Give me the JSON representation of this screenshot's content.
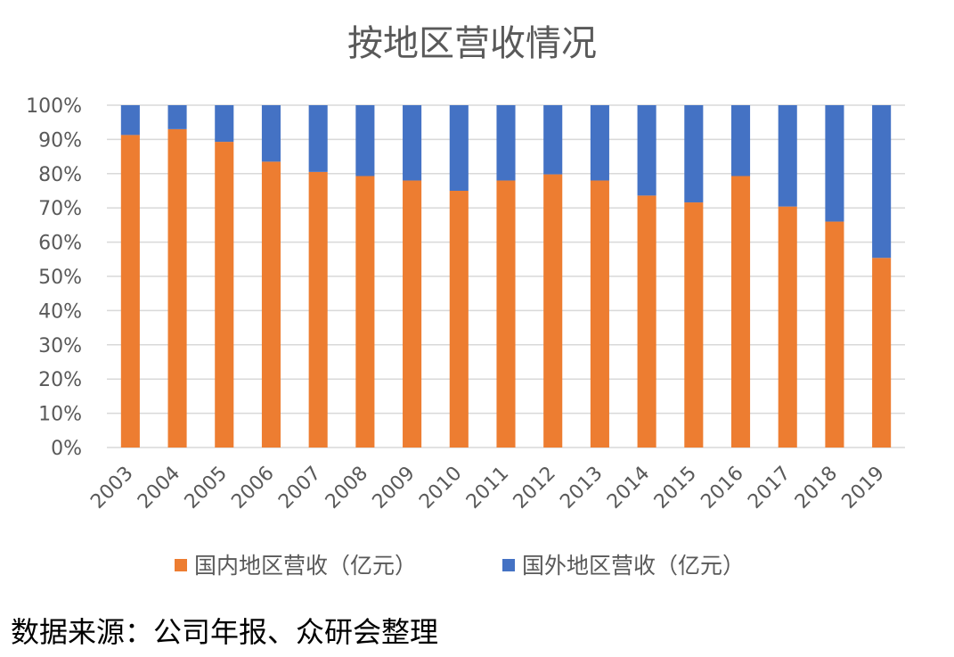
{
  "chart_data": {
    "type": "bar",
    "stacked": "percent",
    "title": "按地区营收情况",
    "xlabel": "",
    "ylabel": "",
    "ylim": [
      0,
      100
    ],
    "y_tick_labels": [
      "0%",
      "10%",
      "20%",
      "30%",
      "40%",
      "50%",
      "60%",
      "70%",
      "80%",
      "90%",
      "100%"
    ],
    "grid": true,
    "legend_position": "bottom",
    "categories": [
      "2003",
      "2004",
      "2005",
      "2006",
      "2007",
      "2008",
      "2009",
      "2010",
      "2011",
      "2012",
      "2013",
      "2014",
      "2015",
      "2016",
      "2017",
      "2018",
      "2019"
    ],
    "series": [
      {
        "name": "国内地区营收（亿元）",
        "color": "#ED7D31",
        "values": [
          91.3,
          93,
          89.3,
          83.5,
          80.5,
          79.3,
          78,
          75,
          78,
          79.8,
          78,
          73.6,
          71.6,
          79.3,
          70.4,
          66,
          55.4
        ]
      },
      {
        "name": "国外地区营收（亿元）",
        "color": "#4472C4",
        "values": [
          8.7,
          7,
          10.7,
          16.5,
          19.5,
          20.7,
          22,
          25,
          22,
          20.2,
          22,
          26.4,
          28.4,
          20.7,
          29.6,
          34,
          44.6
        ]
      }
    ]
  },
  "source_note": "数据来源：公司年报、众研会整理"
}
